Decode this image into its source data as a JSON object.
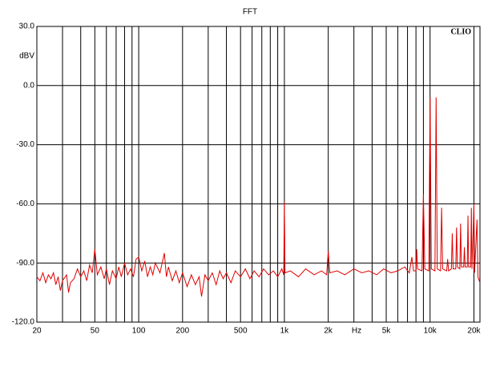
{
  "chart_data": {
    "type": "line",
    "title": "FFT",
    "y_label": "dBV",
    "x_label": "Hz",
    "watermark": "CLIO",
    "log_x": true,
    "grid": true,
    "xlim": [
      20,
      22000
    ],
    "ylim": [
      -120,
      30
    ],
    "yticks": [
      {
        "value": 30,
        "label": "30.0"
      },
      {
        "value": 0,
        "label": "0.0"
      },
      {
        "value": -30,
        "label": "-30.0"
      },
      {
        "value": -60,
        "label": "-60.0"
      },
      {
        "value": -90,
        "label": "-90.0"
      },
      {
        "value": -120,
        "label": "-120.0"
      }
    ],
    "xticks": [
      20,
      50,
      100,
      200,
      500,
      {
        "value": 1000,
        "label": "1k"
      },
      {
        "value": 2000,
        "label": "2k"
      },
      {
        "value": 5000,
        "label": "5k"
      },
      {
        "value": 10000,
        "label": "10k"
      },
      {
        "value": 20000,
        "label": "20k"
      }
    ],
    "xgrid": [
      30,
      40,
      60,
      70,
      80,
      90,
      300,
      400,
      600,
      700,
      800,
      900,
      3000,
      4000,
      6000,
      7000,
      8000,
      9000
    ],
    "x": [
      20,
      21,
      22,
      23,
      24,
      25,
      26,
      27,
      28,
      29,
      30,
      32,
      33,
      34,
      36,
      38,
      40,
      42,
      44,
      46,
      48,
      50,
      52,
      55,
      58,
      60,
      63,
      66,
      70,
      73,
      76,
      80,
      84,
      88,
      92,
      96,
      100,
      105,
      110,
      115,
      120,
      125,
      130,
      140,
      150,
      155,
      160,
      170,
      180,
      190,
      200,
      215,
      230,
      245,
      260,
      270,
      285,
      300,
      320,
      340,
      360,
      380,
      400,
      430,
      460,
      500,
      540,
      580,
      620,
      670,
      720,
      780,
      840,
      900,
      960,
      990,
      1000,
      1010,
      1100,
      1250,
      1400,
      1600,
      1800,
      1950,
      2000,
      2050,
      2300,
      2600,
      3000,
      3400,
      3800,
      4300,
      4800,
      5400,
      6000,
      6700,
      7200,
      7500,
      7700,
      8000,
      8100,
      8200,
      8800,
      9000,
      9200,
      9800,
      10000,
      10200,
      10800,
      11000,
      11200,
      11800,
      12000,
      12200,
      13000,
      13200,
      13400,
      14000,
      14200,
      14400,
      15000,
      15200,
      15400,
      16000,
      16200,
      16400,
      17000,
      17200,
      17400,
      18000,
      18200,
      18400,
      19000,
      19200,
      19400,
      20000,
      20200,
      21000,
      21300,
      22000
    ],
    "series": [
      {
        "color": "#e00000",
        "values": [
          -97,
          -99,
          -95,
          -100,
          -96,
          -98,
          -95,
          -101,
          -97,
          -104,
          -99,
          -96,
          -105,
          -100,
          -98,
          -93,
          -97,
          -94,
          -99,
          -91,
          -95,
          -83,
          -96,
          -92,
          -98,
          -93,
          -101,
          -94,
          -98,
          -92,
          -97,
          -90,
          -96,
          -93,
          -97,
          -88,
          -87,
          -94,
          -89,
          -97,
          -92,
          -96,
          -90,
          -95,
          -85,
          -97,
          -92,
          -99,
          -94,
          -100,
          -95,
          -102,
          -96,
          -101,
          -97,
          -107,
          -96,
          -99,
          -95,
          -101,
          -94,
          -98,
          -95,
          -100,
          -94,
          -97,
          -93,
          -98,
          -94,
          -97,
          -93,
          -96,
          -94,
          -97,
          -93,
          -96,
          -59,
          -95,
          -94,
          -97,
          -93,
          -96,
          -94,
          -96,
          -84,
          -95,
          -94,
          -96,
          -93,
          -95,
          -94,
          -96,
          -93,
          -95,
          -94,
          -92,
          -95,
          -87,
          -94,
          -94,
          -83,
          -93,
          -94,
          -55,
          -93,
          -94,
          -6,
          -93,
          -94,
          -6,
          -93,
          -94,
          -62,
          -93,
          -94,
          -88,
          -94,
          -93,
          -75,
          -93,
          -93,
          -72,
          -92,
          -93,
          -70,
          -92,
          -92,
          -82,
          -92,
          -92,
          -66,
          -92,
          -92,
          -62,
          -93,
          -60,
          -95,
          -68,
          -97,
          -100
        ]
      }
    ]
  }
}
